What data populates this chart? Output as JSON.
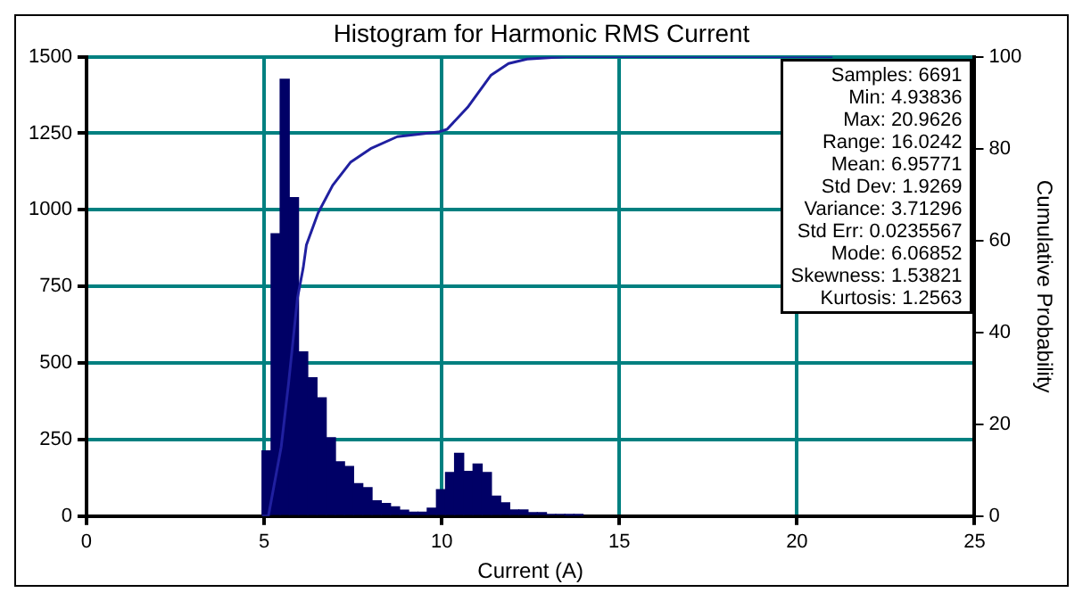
{
  "chart_data": {
    "type": "histogram",
    "title": "Histogram for Harmonic RMS Current",
    "xlabel": "Current (A)",
    "y2label": "Cumulative Probability",
    "bins": [
      4.94,
      5.2,
      5.45,
      5.71,
      5.97,
      6.23,
      6.49,
      6.75,
      7.01,
      7.26,
      7.52,
      7.78,
      8.04,
      8.3,
      8.56,
      8.81,
      9.07,
      9.33,
      9.59,
      9.85,
      10.11,
      10.36,
      10.62,
      10.88,
      11.14,
      11.4,
      11.66,
      11.91,
      12.17,
      12.43,
      12.69,
      12.95,
      13.21,
      13.47,
      13.72,
      13.98
    ],
    "values": [
      213,
      922,
      1426,
      1040,
      536,
      452,
      386,
      256,
      177,
      162,
      106,
      93,
      50,
      41,
      30,
      19,
      13,
      13,
      26,
      86,
      142,
      205,
      146,
      170,
      142,
      65,
      43,
      20,
      20,
      11,
      11,
      5,
      5,
      3,
      3
    ],
    "color": "#000066",
    "series": [
      {
        "type": "line",
        "axis": "y2",
        "color": "#2020a0",
        "x": [
          4.94,
          5.12,
          5.48,
          5.69,
          5.94,
          6.1,
          6.19,
          6.52,
          6.93,
          7.43,
          8.0,
          8.75,
          9.9,
          10.15,
          10.73,
          11.39,
          11.88,
          12.4,
          13.5,
          21.0
        ],
        "values": [
          0,
          0,
          15,
          29,
          47.5,
          54,
          59,
          66,
          72,
          77,
          80,
          82.6,
          83.6,
          84.2,
          89,
          96,
          98.5,
          99.5,
          100,
          100
        ]
      }
    ],
    "xlim": [
      0,
      25
    ],
    "xticks": [
      0,
      5,
      10,
      15,
      20,
      25
    ],
    "ylim": [
      0,
      1500
    ],
    "yticks": [
      0,
      250,
      500,
      750,
      1000,
      1250,
      1500
    ],
    "y2lim": [
      0,
      100
    ],
    "y2ticks": [
      0,
      20,
      40,
      60,
      80,
      100
    ],
    "grid": true,
    "legend": false,
    "annotations": [
      "Samples: 6691",
      "Min: 4.93836",
      "Max: 20.9626",
      "Range: 16.0242",
      "Mean: 6.95771",
      "Std Dev: 1.9269",
      "Variance: 3.71296",
      "Std Err: 0.0235567",
      "Mode: 6.06852",
      "Skewness: 1.53821",
      "Kurtosis: 1.2563"
    ]
  }
}
